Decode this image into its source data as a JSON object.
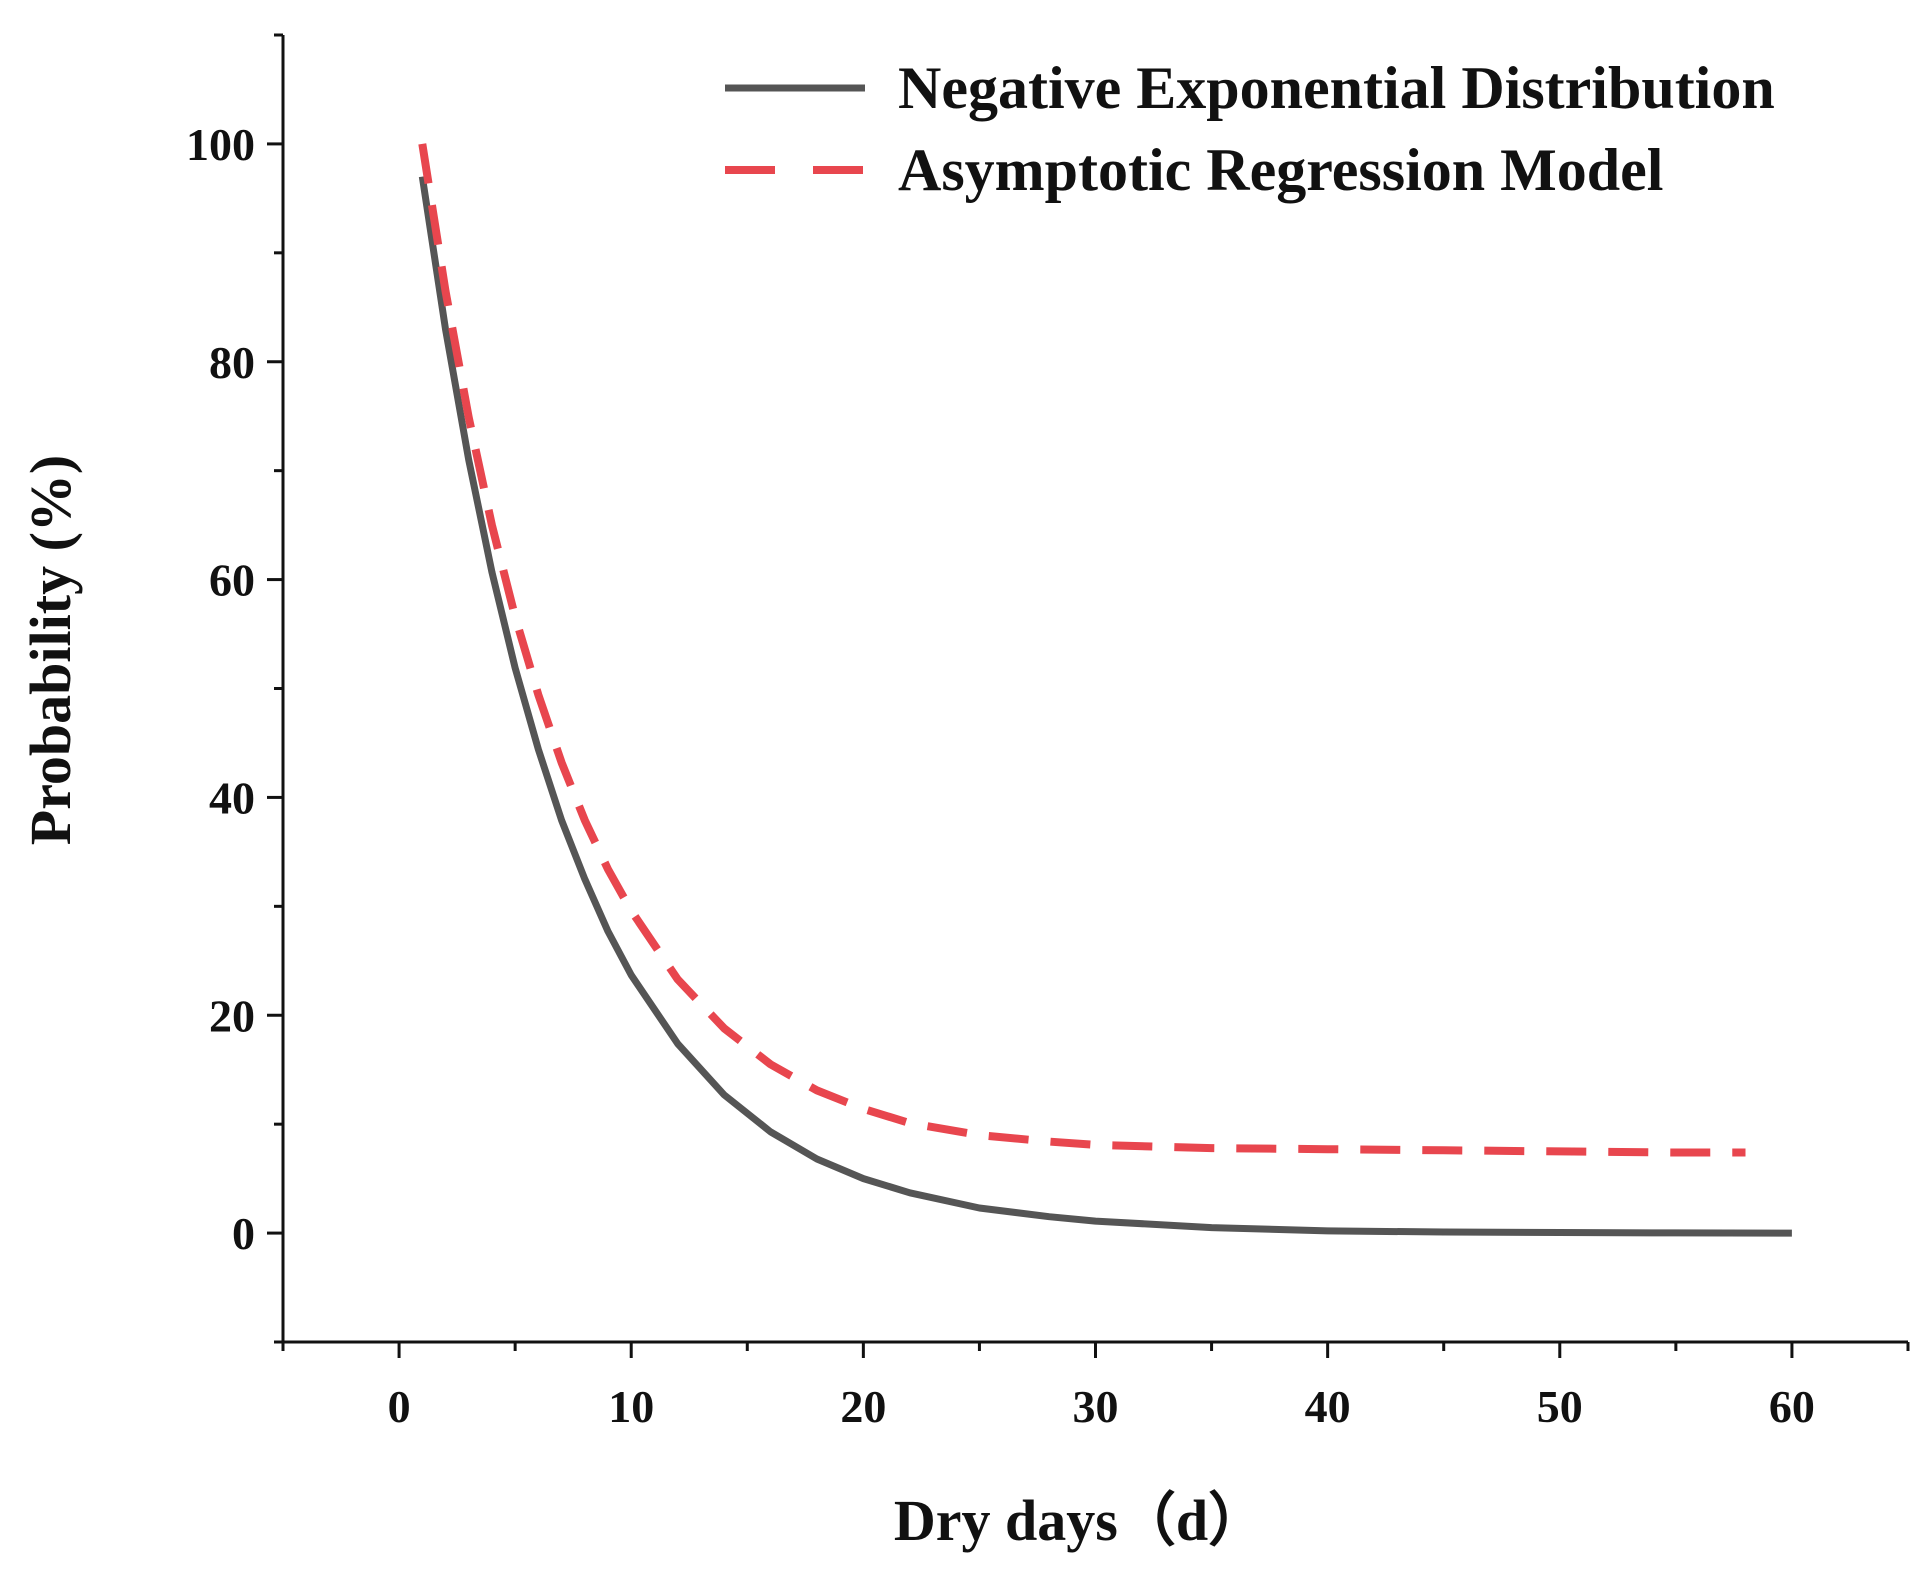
{
  "chart_data": {
    "type": "line",
    "title": "",
    "xlabel": "Dry days（d）",
    "ylabel": "Probability (%)",
    "xlim": [
      -5,
      65
    ],
    "ylim": [
      -10,
      110
    ],
    "xticks": [
      0,
      10,
      20,
      30,
      40,
      50,
      60
    ],
    "yticks": [
      0,
      20,
      40,
      60,
      80,
      100
    ],
    "grid": false,
    "legend_position": "top-right",
    "series": [
      {
        "name": "Negative Exponential Distribution",
        "style": "solid",
        "color": "#555555",
        "x": [
          1,
          2,
          3,
          4,
          5,
          6,
          7,
          8,
          9,
          10,
          12,
          14,
          16,
          18,
          20,
          22,
          25,
          28,
          30,
          35,
          40,
          45,
          50,
          55,
          60
        ],
        "y": [
          97.0,
          83.0,
          71.0,
          60.7,
          51.9,
          44.4,
          37.9,
          32.5,
          27.7,
          23.7,
          17.4,
          12.7,
          9.3,
          6.8,
          5.0,
          3.7,
          2.3,
          1.5,
          1.1,
          0.5,
          0.2,
          0.1,
          0.05,
          0.02,
          0.0
        ]
      },
      {
        "name": "Asymptotic Regression Model",
        "style": "dashed",
        "color": "#e8464e",
        "x": [
          1,
          2,
          3,
          4,
          5,
          6,
          7,
          8,
          9,
          10,
          12,
          14,
          16,
          18,
          20,
          22,
          25,
          28,
          30,
          35,
          40,
          45,
          50,
          55,
          58
        ],
        "y": [
          100.0,
          86.5,
          74.9,
          65.0,
          56.6,
          49.4,
          43.2,
          37.9,
          33.4,
          29.6,
          23.3,
          18.8,
          15.5,
          13.1,
          11.4,
          10.1,
          9.0,
          8.4,
          8.1,
          7.8,
          7.7,
          7.6,
          7.5,
          7.4,
          7.4
        ]
      }
    ]
  }
}
